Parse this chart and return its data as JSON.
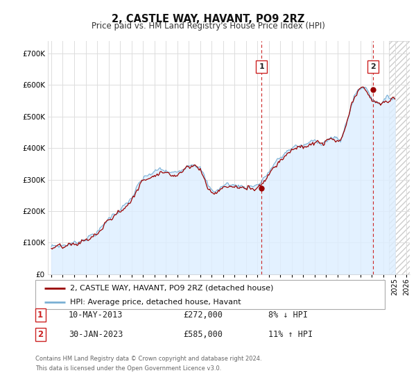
{
  "title": "2, CASTLE WAY, HAVANT, PO9 2RZ",
  "subtitle": "Price paid vs. HM Land Registry's House Price Index (HPI)",
  "yticks": [
    0,
    100000,
    200000,
    300000,
    400000,
    500000,
    600000,
    700000
  ],
  "ylim": [
    0,
    740000
  ],
  "xlim_start": 1994.7,
  "xlim_end": 2026.3,
  "transaction1": {
    "date": "10-MAY-2013",
    "price": 272000,
    "pct": "8%",
    "direction": "↓",
    "label": "1",
    "year": 2013.36
  },
  "transaction2": {
    "date": "30-JAN-2023",
    "price": 585000,
    "pct": "11%",
    "direction": "↑",
    "label": "2",
    "year": 2023.08
  },
  "legend_property": "2, CASTLE WAY, HAVANT, PO9 2RZ (detached house)",
  "legend_hpi": "HPI: Average price, detached house, Havant",
  "footer1": "Contains HM Land Registry data © Crown copyright and database right 2024.",
  "footer2": "This data is licensed under the Open Government Licence v3.0.",
  "property_color": "#990000",
  "hpi_color": "#7ab0d4",
  "hpi_fill_color": "#ddeeff",
  "vline_color": "#cc2222",
  "plot_bg": "#ffffff",
  "grid_color": "#dddddd",
  "hatch_color": "#cccccc"
}
